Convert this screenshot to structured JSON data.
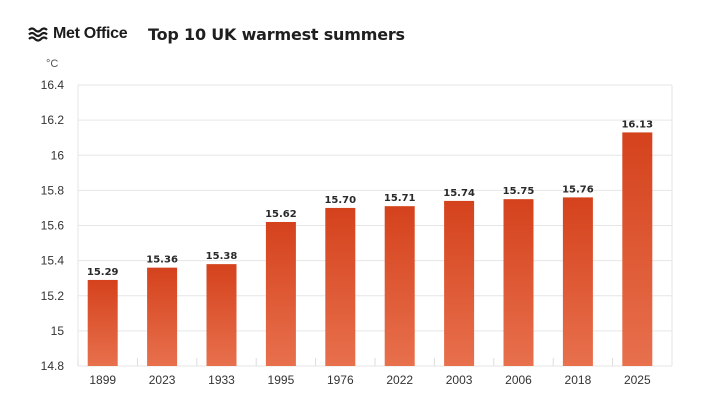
{
  "header": {
    "logo_text": "Met Office",
    "logo_icon": "met-office-wave-icon",
    "title": "Top 10 UK warmest summers"
  },
  "colors": {
    "bar_top": "#d4421c",
    "bar_bottom": "#e8704d",
    "grid": "#e6e6e6"
  },
  "chart_data": {
    "type": "bar",
    "title": "Top 10 UK warmest summers",
    "ylabel": "°C",
    "xlabel": "",
    "ylim": [
      14.8,
      16.4
    ],
    "yticks": [
      "14.8",
      "15",
      "15.2",
      "15.4",
      "15.6",
      "15.8",
      "16",
      "16.2",
      "16.4"
    ],
    "grid": true,
    "categories": [
      "1899",
      "2023",
      "1933",
      "1995",
      "1976",
      "2022",
      "2003",
      "2006",
      "2018",
      "2025"
    ],
    "values": [
      15.29,
      15.36,
      15.38,
      15.62,
      15.7,
      15.71,
      15.74,
      15.75,
      15.76,
      16.13
    ],
    "value_labels": [
      "15.29",
      "15.36",
      "15.38",
      "15.62",
      "15.70",
      "15.71",
      "15.74",
      "15.75",
      "15.76",
      "16.13"
    ]
  }
}
